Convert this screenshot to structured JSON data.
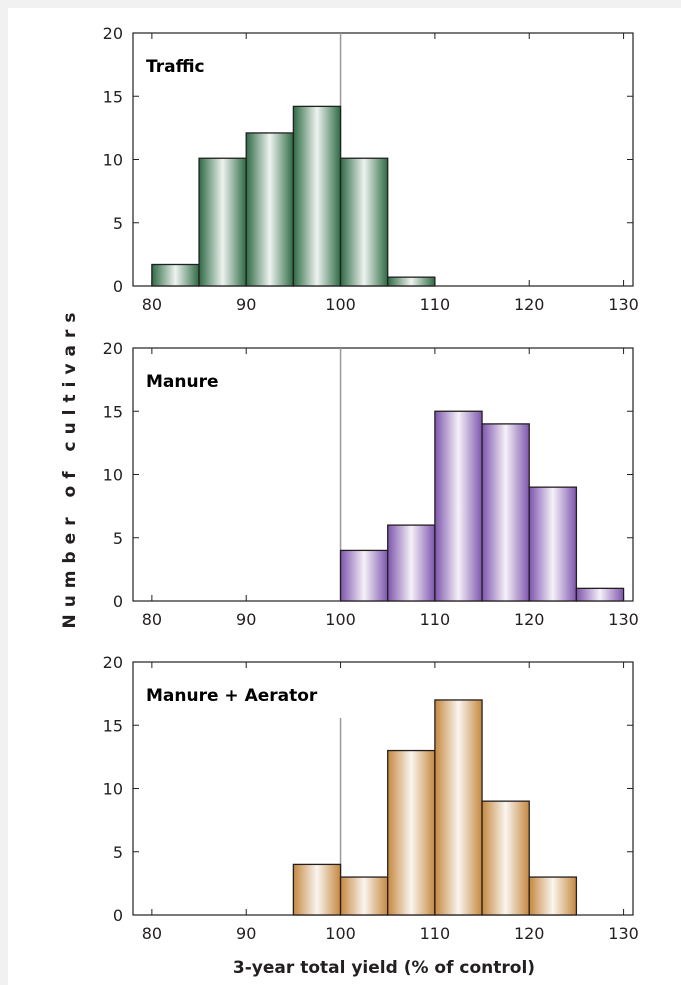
{
  "chart_data": {
    "type": "bar",
    "subtype": "histogram",
    "ylabel": "Number of cultivars",
    "xlabel": "3-year total yield (% of control)",
    "x_ticks": [
      80,
      90,
      100,
      110,
      120,
      130
    ],
    "y_ticks": [
      0,
      5,
      10,
      15,
      20
    ],
    "xlim": [
      78,
      131
    ],
    "ylim": [
      0,
      20
    ],
    "reference_line_x": 100,
    "bin_width": 5,
    "panels": [
      {
        "name": "Traffic",
        "color": "#2e6a44",
        "bins": [
          {
            "start": 80,
            "end": 85,
            "count": 1.7
          },
          {
            "start": 85,
            "end": 90,
            "count": 10.1
          },
          {
            "start": 90,
            "end": 95,
            "count": 12.1
          },
          {
            "start": 95,
            "end": 100,
            "count": 14.2
          },
          {
            "start": 100,
            "end": 105,
            "count": 10.1
          },
          {
            "start": 105,
            "end": 110,
            "count": 0.7
          }
        ]
      },
      {
        "name": "Manure",
        "color": "#7d55ad",
        "bins": [
          {
            "start": 100,
            "end": 105,
            "count": 4
          },
          {
            "start": 105,
            "end": 110,
            "count": 6
          },
          {
            "start": 110,
            "end": 115,
            "count": 15
          },
          {
            "start": 115,
            "end": 120,
            "count": 14
          },
          {
            "start": 120,
            "end": 125,
            "count": 9
          },
          {
            "start": 125,
            "end": 130,
            "count": 1
          }
        ]
      },
      {
        "name": "Manure + Aerator",
        "color": "#c5883f",
        "bins": [
          {
            "start": 95,
            "end": 100,
            "count": 4
          },
          {
            "start": 100,
            "end": 105,
            "count": 3
          },
          {
            "start": 105,
            "end": 110,
            "count": 13
          },
          {
            "start": 110,
            "end": 115,
            "count": 17
          },
          {
            "start": 115,
            "end": 120,
            "count": 9
          },
          {
            "start": 120,
            "end": 125,
            "count": 3
          }
        ]
      }
    ]
  }
}
